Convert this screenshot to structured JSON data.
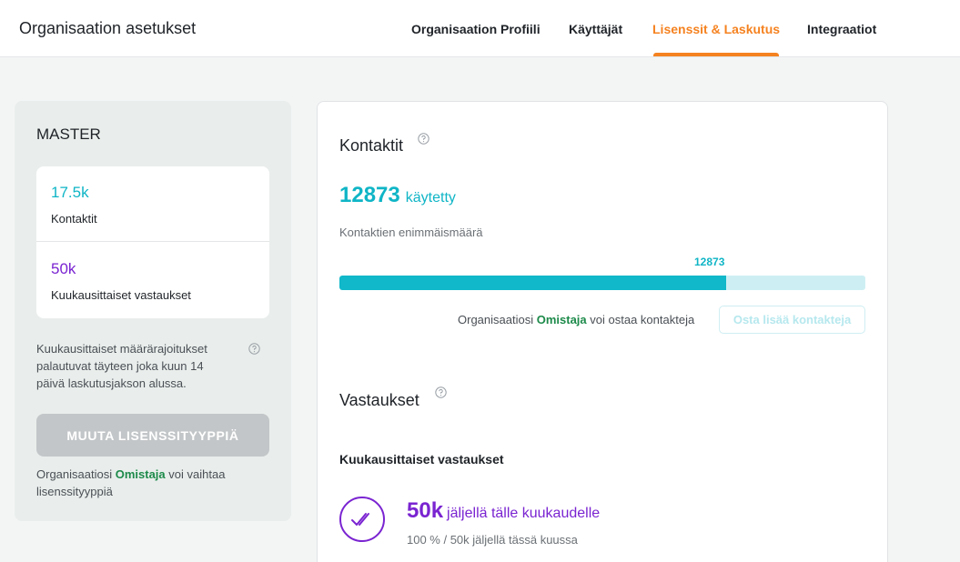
{
  "header": {
    "title": "Organisaation asetukset",
    "tabs": [
      {
        "label": "Organisaation Profiili",
        "active": false
      },
      {
        "label": "Käyttäjät",
        "active": false
      },
      {
        "label": "Lisenssit & Laskutus",
        "active": true
      },
      {
        "label": "Integraatiot",
        "active": false
      }
    ],
    "accent_color": "#f58220"
  },
  "sidebar": {
    "plan_name": "MASTER",
    "quotas": [
      {
        "value": "17.5k",
        "label": "Kontaktit",
        "color": "#0fb5c6"
      },
      {
        "value": "50k",
        "label": "Kuukausittaiset vastaukset",
        "color": "#7a24d1"
      }
    ],
    "reset_info": "Kuukausittaiset määrärajoitukset palautuvat täyteen joka kuun 14 päivä laskutusjakson alussa.",
    "help_icon": "question-circle-icon",
    "change_license_label": "MUUTA LISENSSITYYPPIÄ",
    "owner_note": {
      "prefix": "Organisaatiosi",
      "role": "Omistaja",
      "suffix": "voi vaihtaa lisenssityyppiä"
    }
  },
  "contacts": {
    "title": "Kontaktit",
    "used_value": "12873",
    "used_label": "käytetty",
    "max_label": "Kontaktien enimmäismäärä",
    "bar_marker": "12873",
    "usage_fraction": 0.736,
    "buy_note": {
      "prefix": "Organisaatiosi",
      "role": "Omistaja",
      "suffix": "voi ostaa kontakteja"
    },
    "buy_button_label": "Osta lisää kontakteja"
  },
  "responses": {
    "title": "Vastaukset",
    "monthly_label": "Kuukausittaiset vastaukset",
    "remaining_value": "50k",
    "remaining_text": "jäljellä tälle kuukaudelle",
    "remaining_sub": "100 % / 50k jäljellä tässä kuussa",
    "icon": "double-check-icon"
  }
}
